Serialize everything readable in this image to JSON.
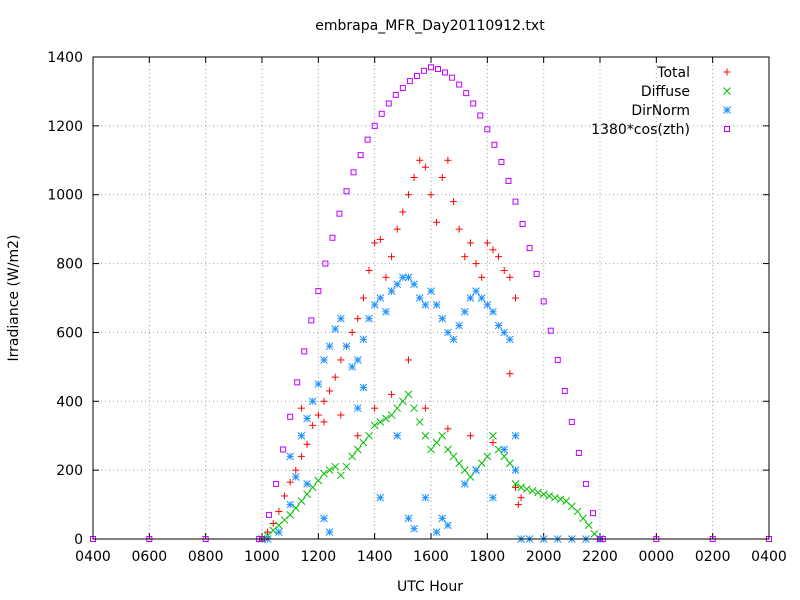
{
  "chart_data": {
    "type": "scatter",
    "title": "embrapa_MFR_Day20110912.txt",
    "xlabel": "UTC Hour",
    "ylabel": "Irradiance (W/m2)",
    "x_unit": "UTC hours elapsed since 04:00",
    "xlim": [
      0,
      24
    ],
    "ylim": [
      0,
      1400
    ],
    "x_ticks": [
      {
        "value": 0,
        "label": "0400"
      },
      {
        "value": 2,
        "label": "0600"
      },
      {
        "value": 4,
        "label": "0800"
      },
      {
        "value": 6,
        "label": "1000"
      },
      {
        "value": 8,
        "label": "1200"
      },
      {
        "value": 10,
        "label": "1400"
      },
      {
        "value": 12,
        "label": "1600"
      },
      {
        "value": 14,
        "label": "1800"
      },
      {
        "value": 16,
        "label": "2000"
      },
      {
        "value": 18,
        "label": "2200"
      },
      {
        "value": 20,
        "label": "0000"
      },
      {
        "value": 22,
        "label": "0200"
      },
      {
        "value": 24,
        "label": "0400"
      }
    ],
    "y_ticks": [
      0,
      200,
      400,
      600,
      800,
      1000,
      1200,
      1400
    ],
    "grid": true,
    "legend_position": "top-right",
    "series": [
      {
        "name": "Total",
        "marker": "+",
        "color": "#ff0000",
        "points": [
          [
            6.0,
            0
          ],
          [
            6.2,
            20
          ],
          [
            6.4,
            45
          ],
          [
            6.6,
            80
          ],
          [
            6.8,
            125
          ],
          [
            7.0,
            165
          ],
          [
            7.2,
            200
          ],
          [
            7.4,
            240
          ],
          [
            7.6,
            275
          ],
          [
            7.8,
            330
          ],
          [
            8.0,
            360
          ],
          [
            8.2,
            400
          ],
          [
            8.4,
            430
          ],
          [
            8.6,
            470
          ],
          [
            8.8,
            520
          ],
          [
            9.0,
            560
          ],
          [
            9.2,
            600
          ],
          [
            9.4,
            640
          ],
          [
            9.6,
            700
          ],
          [
            9.8,
            780
          ],
          [
            10.0,
            860
          ],
          [
            10.2,
            870
          ],
          [
            10.4,
            760
          ],
          [
            10.6,
            820
          ],
          [
            10.8,
            900
          ],
          [
            11.0,
            950
          ],
          [
            11.2,
            1000
          ],
          [
            11.4,
            1050
          ],
          [
            11.6,
            1100
          ],
          [
            11.8,
            1080
          ],
          [
            12.0,
            1000
          ],
          [
            12.2,
            920
          ],
          [
            12.4,
            1050
          ],
          [
            12.6,
            1100
          ],
          [
            12.8,
            980
          ],
          [
            13.0,
            900
          ],
          [
            13.2,
            820
          ],
          [
            13.4,
            860
          ],
          [
            13.6,
            800
          ],
          [
            13.8,
            760
          ],
          [
            14.0,
            860
          ],
          [
            14.2,
            840
          ],
          [
            14.4,
            820
          ],
          [
            14.6,
            780
          ],
          [
            14.8,
            760
          ],
          [
            15.0,
            700
          ],
          [
            7.4,
            380
          ],
          [
            8.2,
            340
          ],
          [
            8.8,
            360
          ],
          [
            9.4,
            300
          ],
          [
            10.0,
            380
          ],
          [
            10.6,
            420
          ],
          [
            11.2,
            520
          ],
          [
            11.8,
            380
          ],
          [
            12.6,
            320
          ],
          [
            13.4,
            300
          ],
          [
            14.2,
            280
          ],
          [
            14.8,
            480
          ],
          [
            15.0,
            150
          ],
          [
            15.1,
            100
          ],
          [
            15.2,
            120
          ]
        ]
      },
      {
        "name": "Diffuse",
        "marker": "x",
        "color": "#00c000",
        "points": [
          [
            6.0,
            0
          ],
          [
            6.2,
            10
          ],
          [
            6.4,
            25
          ],
          [
            6.6,
            40
          ],
          [
            6.8,
            55
          ],
          [
            7.0,
            70
          ],
          [
            7.2,
            90
          ],
          [
            7.4,
            110
          ],
          [
            7.6,
            130
          ],
          [
            7.8,
            150
          ],
          [
            8.0,
            170
          ],
          [
            8.2,
            190
          ],
          [
            8.4,
            200
          ],
          [
            8.6,
            210
          ],
          [
            8.8,
            185
          ],
          [
            9.0,
            210
          ],
          [
            9.2,
            240
          ],
          [
            9.4,
            260
          ],
          [
            9.6,
            280
          ],
          [
            9.8,
            300
          ],
          [
            10.0,
            330
          ],
          [
            10.2,
            340
          ],
          [
            10.4,
            350
          ],
          [
            10.6,
            360
          ],
          [
            10.8,
            380
          ],
          [
            11.0,
            400
          ],
          [
            11.2,
            420
          ],
          [
            11.4,
            380
          ],
          [
            11.6,
            340
          ],
          [
            11.8,
            300
          ],
          [
            12.0,
            260
          ],
          [
            12.2,
            280
          ],
          [
            12.4,
            300
          ],
          [
            12.6,
            260
          ],
          [
            12.8,
            240
          ],
          [
            13.0,
            220
          ],
          [
            13.2,
            200
          ],
          [
            13.4,
            180
          ],
          [
            13.6,
            200
          ],
          [
            13.8,
            220
          ],
          [
            14.0,
            240
          ],
          [
            14.2,
            300
          ],
          [
            14.4,
            260
          ],
          [
            14.6,
            240
          ],
          [
            14.8,
            220
          ],
          [
            15.0,
            160
          ],
          [
            15.2,
            150
          ],
          [
            15.4,
            145
          ],
          [
            15.6,
            140
          ],
          [
            15.8,
            135
          ],
          [
            16.0,
            130
          ],
          [
            16.2,
            125
          ],
          [
            16.4,
            120
          ],
          [
            16.6,
            115
          ],
          [
            16.8,
            110
          ],
          [
            17.0,
            95
          ],
          [
            17.2,
            80
          ],
          [
            17.4,
            60
          ],
          [
            17.6,
            40
          ],
          [
            17.8,
            15
          ],
          [
            18.0,
            0
          ]
        ]
      },
      {
        "name": "DirNorm",
        "marker": "*",
        "color": "#1e90ff",
        "points": [
          [
            6.2,
            0
          ],
          [
            6.6,
            20
          ],
          [
            7.0,
            100
          ],
          [
            7.2,
            180
          ],
          [
            7.4,
            300
          ],
          [
            7.6,
            350
          ],
          [
            7.8,
            400
          ],
          [
            8.0,
            450
          ],
          [
            8.2,
            520
          ],
          [
            8.4,
            560
          ],
          [
            8.6,
            610
          ],
          [
            8.8,
            640
          ],
          [
            9.0,
            560
          ],
          [
            9.2,
            500
          ],
          [
            9.4,
            520
          ],
          [
            9.6,
            580
          ],
          [
            9.8,
            640
          ],
          [
            10.0,
            680
          ],
          [
            10.2,
            700
          ],
          [
            10.4,
            660
          ],
          [
            10.6,
            720
          ],
          [
            10.8,
            740
          ],
          [
            11.0,
            760
          ],
          [
            11.2,
            760
          ],
          [
            11.4,
            740
          ],
          [
            11.6,
            700
          ],
          [
            11.8,
            680
          ],
          [
            12.0,
            720
          ],
          [
            12.2,
            680
          ],
          [
            12.4,
            640
          ],
          [
            12.6,
            600
          ],
          [
            12.8,
            580
          ],
          [
            13.0,
            620
          ],
          [
            13.2,
            660
          ],
          [
            13.4,
            700
          ],
          [
            13.6,
            720
          ],
          [
            13.8,
            700
          ],
          [
            14.0,
            680
          ],
          [
            14.2,
            660
          ],
          [
            14.4,
            620
          ],
          [
            14.6,
            600
          ],
          [
            14.8,
            580
          ],
          [
            15.0,
            300
          ],
          [
            7.0,
            240
          ],
          [
            7.6,
            160
          ],
          [
            8.2,
            60
          ],
          [
            8.4,
            20
          ],
          [
            9.4,
            380
          ],
          [
            9.6,
            440
          ],
          [
            10.2,
            120
          ],
          [
            10.8,
            300
          ],
          [
            11.2,
            60
          ],
          [
            11.4,
            30
          ],
          [
            11.8,
            120
          ],
          [
            12.2,
            20
          ],
          [
            12.4,
            60
          ],
          [
            12.6,
            40
          ],
          [
            13.2,
            160
          ],
          [
            13.6,
            200
          ],
          [
            14.2,
            120
          ],
          [
            14.6,
            260
          ],
          [
            15.0,
            200
          ],
          [
            15.2,
            0
          ],
          [
            15.5,
            0
          ],
          [
            16.0,
            0
          ],
          [
            16.5,
            0
          ],
          [
            17.0,
            0
          ],
          [
            17.5,
            0
          ],
          [
            18.0,
            0
          ]
        ]
      },
      {
        "name": "1380*cos(zth)",
        "marker": "square",
        "color": "#c000ff",
        "points": [
          [
            0,
            0
          ],
          [
            2,
            0
          ],
          [
            4,
            0
          ],
          [
            5.9,
            0
          ],
          [
            6.0,
            0
          ],
          [
            6.25,
            70
          ],
          [
            6.5,
            160
          ],
          [
            6.75,
            260
          ],
          [
            7.0,
            355
          ],
          [
            7.25,
            455
          ],
          [
            7.5,
            545
          ],
          [
            7.75,
            635
          ],
          [
            8.0,
            720
          ],
          [
            8.25,
            800
          ],
          [
            8.5,
            875
          ],
          [
            8.75,
            945
          ],
          [
            9.0,
            1010
          ],
          [
            9.25,
            1065
          ],
          [
            9.5,
            1115
          ],
          [
            9.75,
            1160
          ],
          [
            10.0,
            1200
          ],
          [
            10.25,
            1235
          ],
          [
            10.5,
            1265
          ],
          [
            10.75,
            1290
          ],
          [
            11.0,
            1310
          ],
          [
            11.25,
            1330
          ],
          [
            11.5,
            1345
          ],
          [
            11.75,
            1360
          ],
          [
            12.0,
            1370
          ],
          [
            12.25,
            1365
          ],
          [
            12.5,
            1355
          ],
          [
            12.75,
            1340
          ],
          [
            13.0,
            1320
          ],
          [
            13.25,
            1295
          ],
          [
            13.5,
            1265
          ],
          [
            13.75,
            1230
          ],
          [
            14.0,
            1190
          ],
          [
            14.25,
            1145
          ],
          [
            14.5,
            1095
          ],
          [
            14.75,
            1040
          ],
          [
            15.0,
            980
          ],
          [
            15.25,
            915
          ],
          [
            15.5,
            845
          ],
          [
            15.75,
            770
          ],
          [
            16.0,
            690
          ],
          [
            16.25,
            605
          ],
          [
            16.5,
            520
          ],
          [
            16.75,
            430
          ],
          [
            17.0,
            340
          ],
          [
            17.25,
            250
          ],
          [
            17.5,
            160
          ],
          [
            17.75,
            75
          ],
          [
            18.0,
            0
          ],
          [
            18.1,
            0
          ],
          [
            20,
            0
          ],
          [
            22,
            0
          ],
          [
            24,
            0
          ]
        ]
      }
    ]
  }
}
